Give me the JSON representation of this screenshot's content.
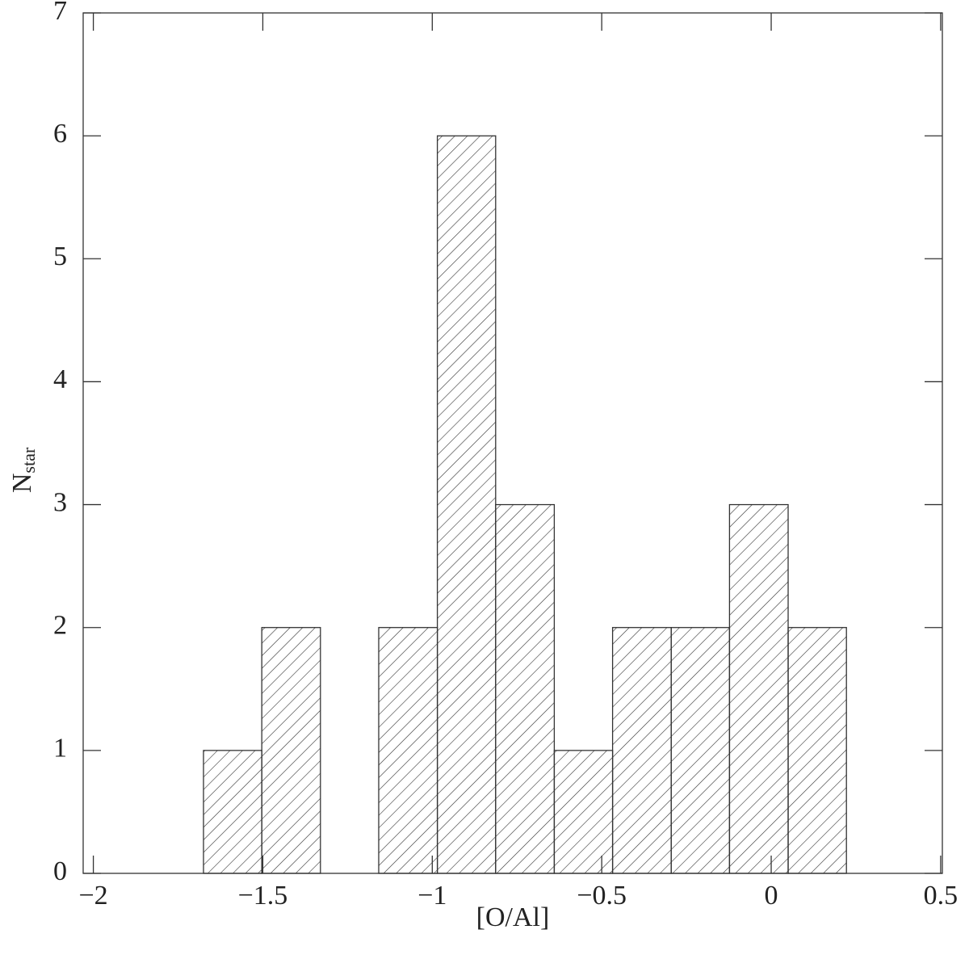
{
  "chart_data": {
    "type": "histogram",
    "xlabel": "[O/Al]",
    "ylabel": "N",
    "ylabel_sub": "star",
    "bins": [
      -1.675,
      -1.503,
      -1.33,
      -1.158,
      -0.985,
      -0.813,
      -0.64,
      -0.468,
      -0.295,
      -0.123,
      0.05,
      0.222
    ],
    "values": [
      1,
      2,
      0,
      2,
      6,
      3,
      1,
      2,
      2,
      3,
      2
    ],
    "color": "#333333",
    "hatch": true,
    "xlim": [
      -2.03,
      0.505
    ],
    "ylim": [
      0,
      7
    ],
    "xticks": [
      {
        "value": -2,
        "label": "−2"
      },
      {
        "value": -1.5,
        "label": "−1.5"
      },
      {
        "value": -1,
        "label": "−1"
      },
      {
        "value": -0.5,
        "label": "−0.5"
      },
      0,
      0.5
    ],
    "yticks": [
      0,
      1,
      2,
      3,
      4,
      5,
      6,
      7
    ]
  }
}
